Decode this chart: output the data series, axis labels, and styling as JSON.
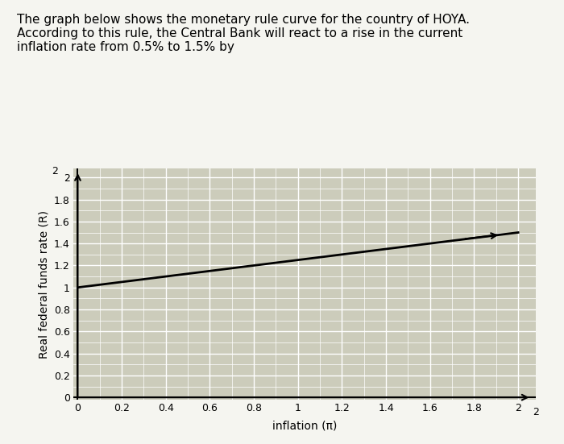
{
  "title_lines": [
    "The graph below shows the monetary rule curve for the country of HOYA.",
    "According to this rule, the Central Bank will react to a rise in the current",
    "inflation rate from 0.5% to 1.5% by"
  ],
  "xlabel": "inflation (π)",
  "ylabel": "Real federal funds rate (R)",
  "xlim": [
    0,
    2
  ],
  "ylim": [
    0,
    2
  ],
  "xticks": [
    0,
    0.2,
    0.4,
    0.6,
    0.8,
    1.0,
    1.2,
    1.4,
    1.6,
    1.8,
    2.0
  ],
  "yticks": [
    0,
    0.2,
    0.4,
    0.6,
    0.8,
    1.0,
    1.2,
    1.4,
    1.6,
    1.8,
    2.0
  ],
  "xtick_labels": [
    "0",
    "0.2",
    "0.4",
    "0.6",
    "0.8",
    "1",
    "1.2",
    "1.4",
    "1.6",
    "1.8",
    "2"
  ],
  "ytick_labels": [
    "0",
    "0.2",
    "0.4",
    "0.6",
    "0.8",
    "1",
    "1.2",
    "1.4",
    "1.6",
    "1.8",
    "2"
  ],
  "line_x": [
    0,
    2.0
  ],
  "line_y": [
    1.0,
    1.5
  ],
  "line_color": "#000000",
  "line_width": 2.0,
  "plot_bg_color": "#ccccbb",
  "figure_bg_color": "#f5f5f0",
  "major_grid_color": "#ffffff",
  "minor_grid_color": "#ddddcc",
  "title_fontsize": 11,
  "axis_label_fontsize": 10,
  "tick_fontsize": 9
}
